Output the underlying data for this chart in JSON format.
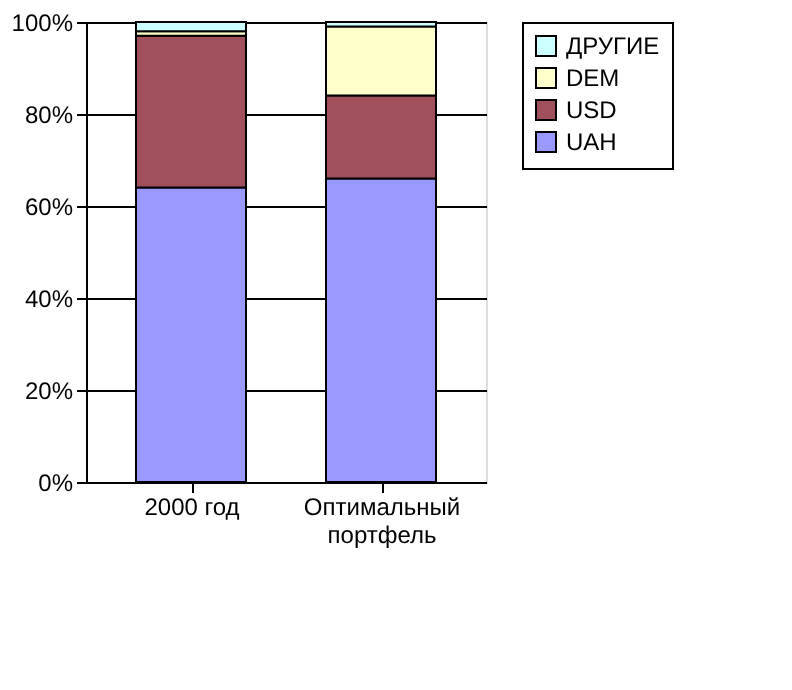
{
  "chart_data": {
    "type": "bar",
    "stacked": true,
    "categories": [
      "2000 год",
      "Оптимальный портфель"
    ],
    "series": [
      {
        "name": "UAH",
        "color": "#9999ff",
        "values": [
          64,
          66
        ]
      },
      {
        "name": "USD",
        "color": "#a0505a",
        "values": [
          33,
          18
        ]
      },
      {
        "name": "DEM",
        "color": "#ffffcc",
        "values": [
          1,
          15
        ]
      },
      {
        "name": "ДРУГИЕ",
        "color": "#ccffff",
        "values": [
          2,
          1
        ]
      }
    ],
    "ylim": [
      0,
      100
    ],
    "yticks": [
      {
        "value": 0,
        "label": "0%"
      },
      {
        "value": 20,
        "label": "20%"
      },
      {
        "value": 40,
        "label": "40%"
      },
      {
        "value": 60,
        "label": "60%"
      },
      {
        "value": 80,
        "label": "80%"
      },
      {
        "value": 100,
        "label": "100%"
      }
    ],
    "grid": "y",
    "legend": "right"
  }
}
